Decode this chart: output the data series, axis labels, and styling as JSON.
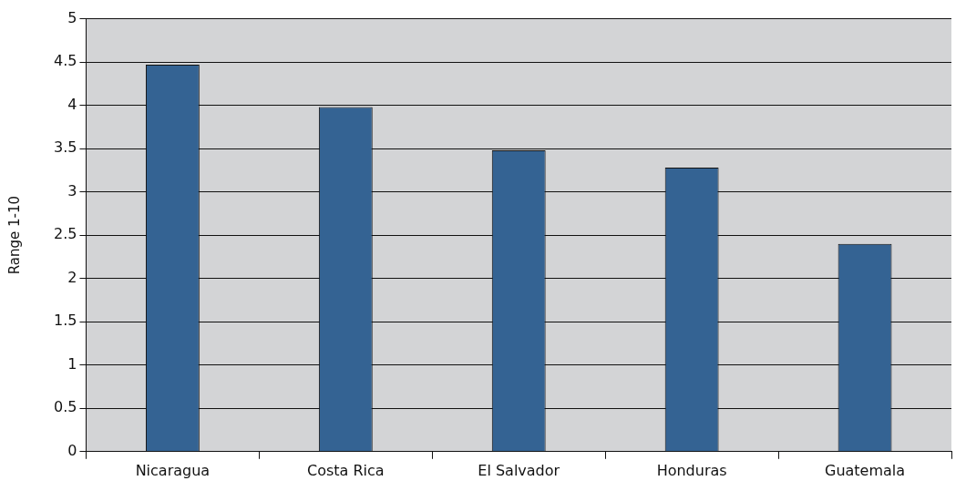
{
  "chart_data": {
    "type": "bar",
    "categories": [
      "Nicaragua",
      "Costa Rica",
      "El Salvador",
      "Honduras",
      "Guatemala"
    ],
    "values": [
      4.47,
      3.98,
      3.48,
      3.28,
      2.4
    ],
    "color": "#346393",
    "ylabel": "Range 1-10",
    "ylim": [
      0,
      5
    ],
    "yticks": [
      0,
      0.5,
      1,
      1.5,
      2,
      2.5,
      3,
      3.5,
      4,
      4.5,
      5
    ],
    "grid": "y"
  }
}
